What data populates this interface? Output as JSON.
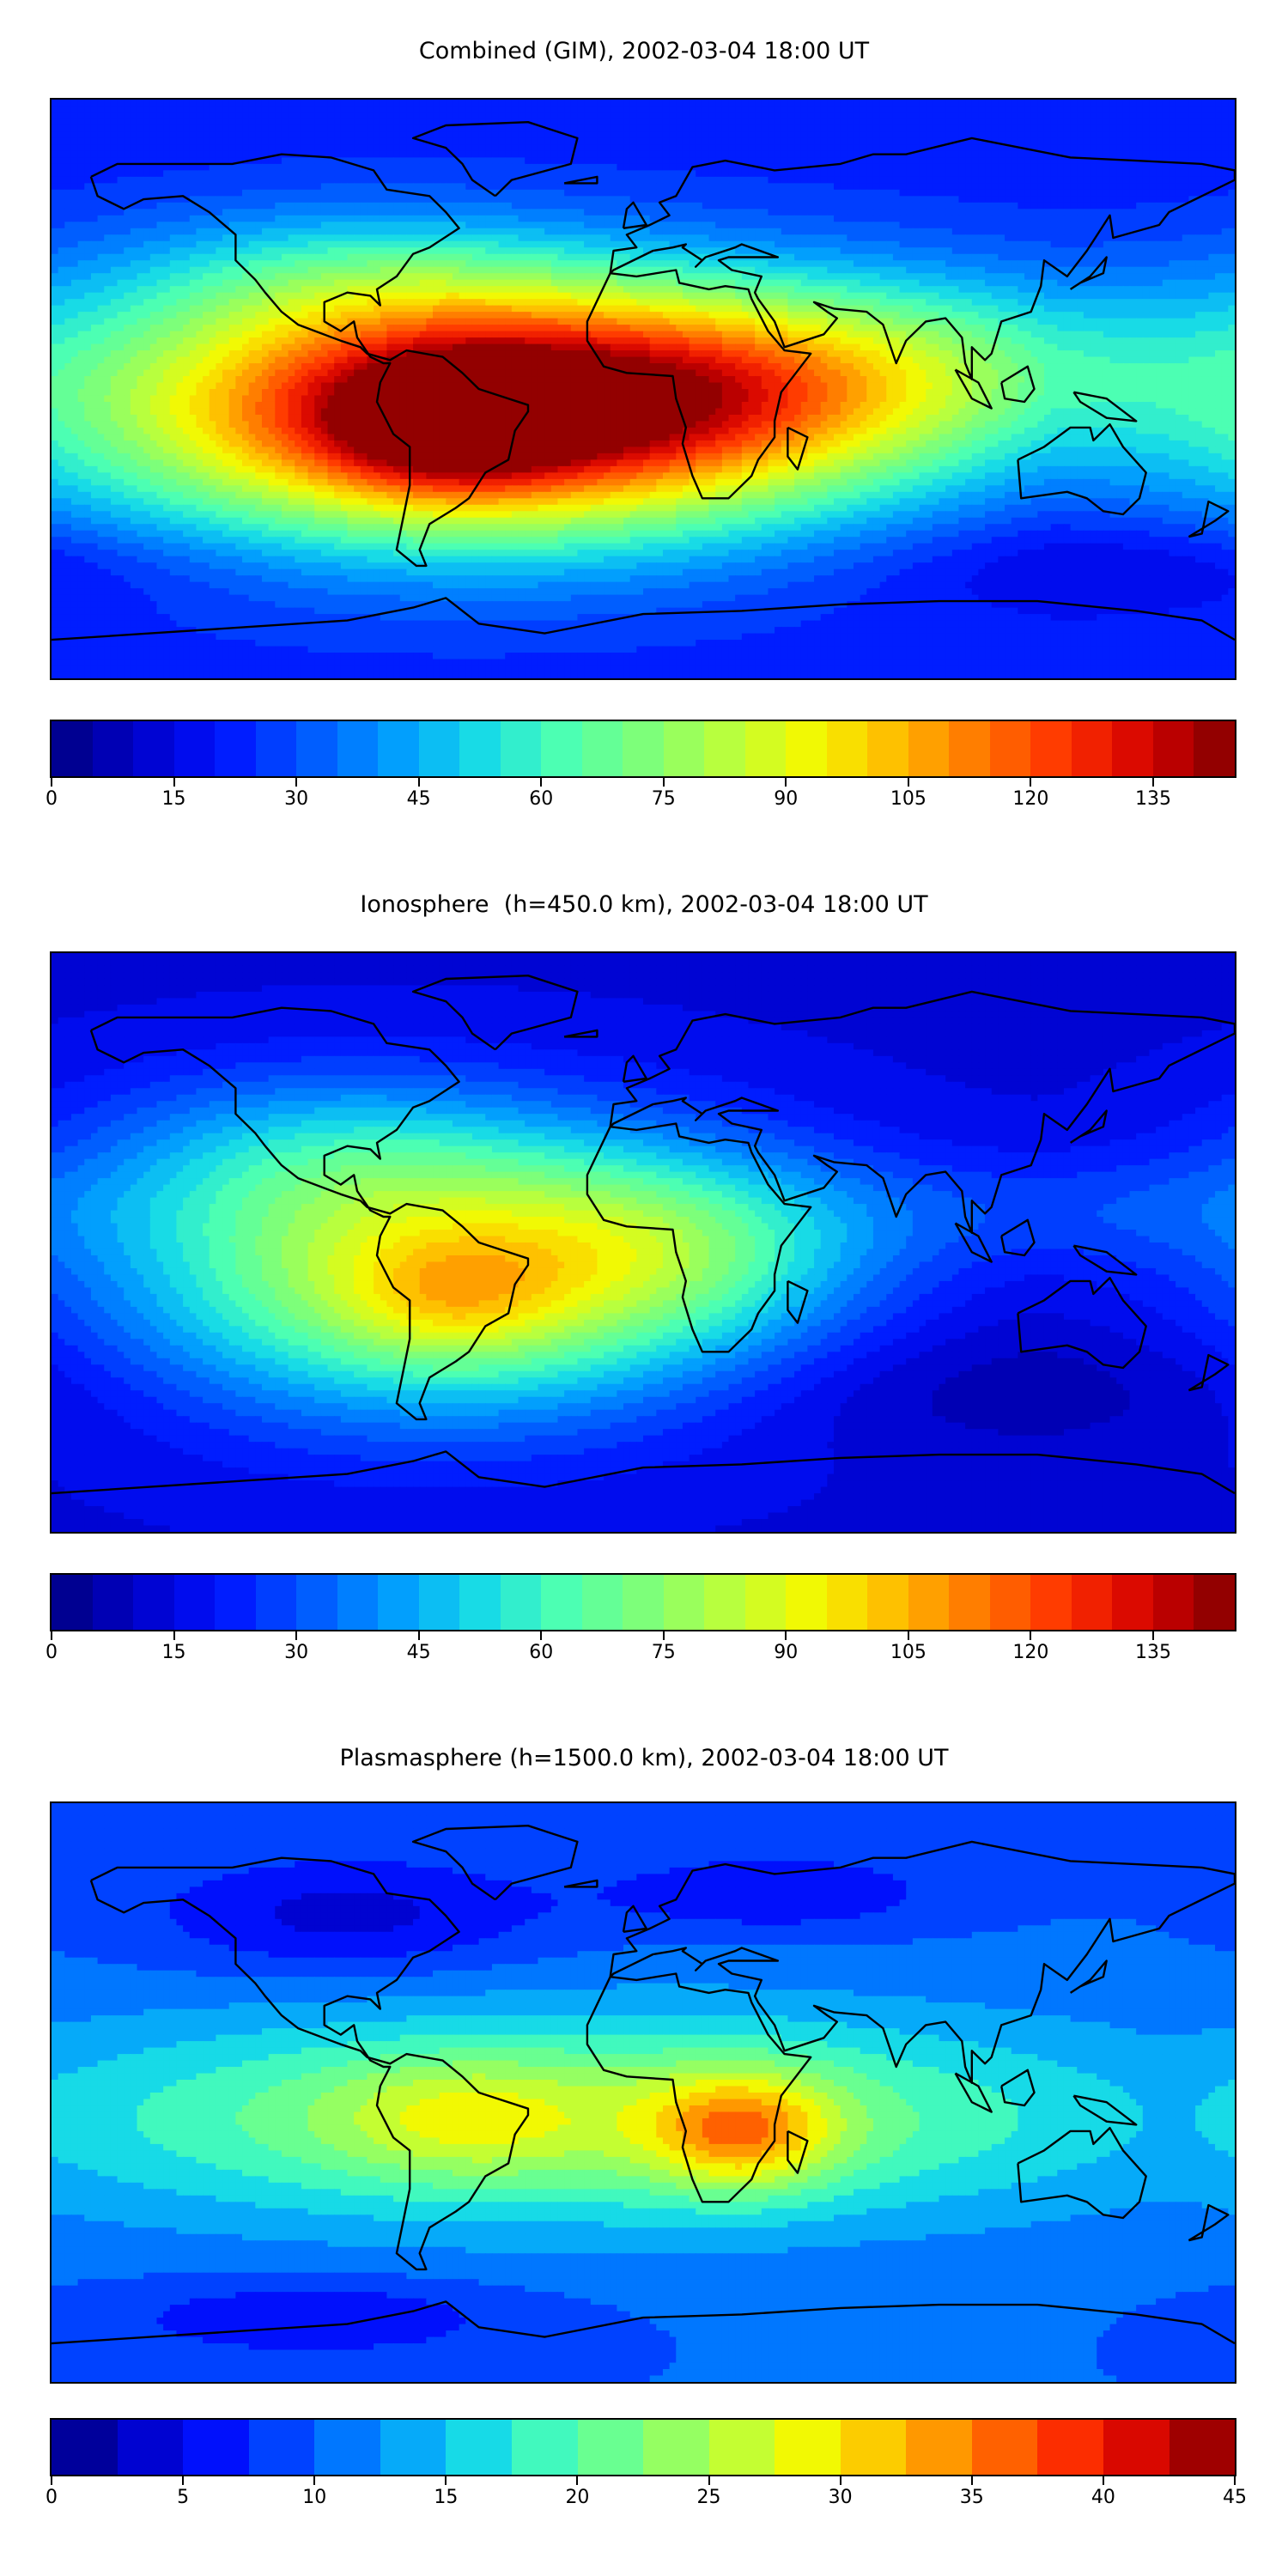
{
  "colormap_jet": [
    "#00007f",
    "#0000c8",
    "#0011ff",
    "#0055ff",
    "#0098ff",
    "#14d8ea",
    "#4affb5",
    "#7dff7a",
    "#baff3c",
    "#f5f900",
    "#ffbb00",
    "#ff7400",
    "#ff3000",
    "#d10000",
    "#7f0000"
  ],
  "panels": [
    {
      "title": "Combined (GIM), 2002-03-04 18:00 UT",
      "colorbar": {
        "min": 0,
        "max": 145,
        "levels": 29,
        "tick_values": [
          0,
          15,
          30,
          45,
          60,
          75,
          90,
          105,
          120,
          135
        ],
        "tick_labels": [
          "0",
          "15",
          "30",
          "45",
          "60",
          "75",
          "90",
          "105",
          "120",
          "135"
        ]
      },
      "map_data": {
        "type": "filled_contour_map",
        "background_value": 22,
        "blobs": [
          {
            "lon": -55,
            "lat": -8,
            "rlon": 115,
            "rlat": 40,
            "amp": 100
          },
          {
            "lon": -60,
            "lat": -12,
            "rlon": 35,
            "rlat": 20,
            "amp": 30
          },
          {
            "lon": 0,
            "lat": -2,
            "rlon": 110,
            "rlat": 32,
            "amp": 45
          },
          {
            "lon": 90,
            "lat": 8,
            "rlon": 100,
            "rlat": 30,
            "amp": 25
          },
          {
            "lon": -90,
            "lat": 35,
            "rlon": 70,
            "rlat": 22,
            "amp": 20
          },
          {
            "lon": 150,
            "lat": -55,
            "rlon": 80,
            "rlat": 15,
            "amp": -10
          }
        ]
      }
    },
    {
      "title": "Ionosphere  (h=450.0 km), 2002-03-04 18:00 UT",
      "colorbar": {
        "min": 0,
        "max": 145,
        "levels": 29,
        "tick_values": [
          0,
          15,
          30,
          45,
          60,
          75,
          90,
          105,
          120,
          135
        ],
        "tick_labels": [
          "0",
          "15",
          "30",
          "45",
          "60",
          "75",
          "90",
          "105",
          "120",
          "135"
        ]
      },
      "map_data": {
        "type": "filled_contour_map",
        "background_value": 14,
        "blobs": [
          {
            "lon": -60,
            "lat": -10,
            "rlon": 95,
            "rlat": 42,
            "amp": 75
          },
          {
            "lon": -58,
            "lat": -18,
            "rlon": 30,
            "rlat": 18,
            "amp": 15
          },
          {
            "lon": -100,
            "lat": 30,
            "rlon": 70,
            "rlat": 25,
            "amp": 20
          },
          {
            "lon": 10,
            "lat": 0,
            "rlon": 60,
            "rlat": 30,
            "amp": 25
          },
          {
            "lon": 130,
            "lat": 10,
            "rlon": 90,
            "rlat": 18,
            "amp": 12
          },
          {
            "lon": 110,
            "lat": -45,
            "rlon": 90,
            "rlat": 20,
            "amp": -8
          }
        ]
      }
    },
    {
      "title": "Plasmasphere (h=1500.0 km), 2002-03-04 18:00 UT",
      "colorbar": {
        "min": 0,
        "max": 45,
        "levels": 18,
        "tick_values": [
          0,
          5,
          10,
          15,
          20,
          25,
          30,
          35,
          40,
          45
        ],
        "tick_labels": [
          "0",
          "5",
          "10",
          "15",
          "20",
          "25",
          "30",
          "35",
          "40",
          "45"
        ]
      },
      "map_data": {
        "type": "filled_contour_map",
        "background_value": 10,
        "blobs": [
          {
            "lon": -20,
            "lat": -8,
            "rlon": 170,
            "rlat": 32,
            "amp": 14
          },
          {
            "lon": 30,
            "lat": -12,
            "rlon": 28,
            "rlat": 18,
            "amp": 14
          },
          {
            "lon": -55,
            "lat": -8,
            "rlon": 40,
            "rlat": 18,
            "amp": 6
          },
          {
            "lon": -90,
            "lat": 55,
            "rlon": 60,
            "rlat": 18,
            "amp": -6
          },
          {
            "lon": 40,
            "lat": 62,
            "rlon": 50,
            "rlat": 12,
            "amp": -5
          },
          {
            "lon": -100,
            "lat": -70,
            "rlon": 60,
            "rlat": 12,
            "amp": -5
          }
        ]
      }
    }
  ]
}
